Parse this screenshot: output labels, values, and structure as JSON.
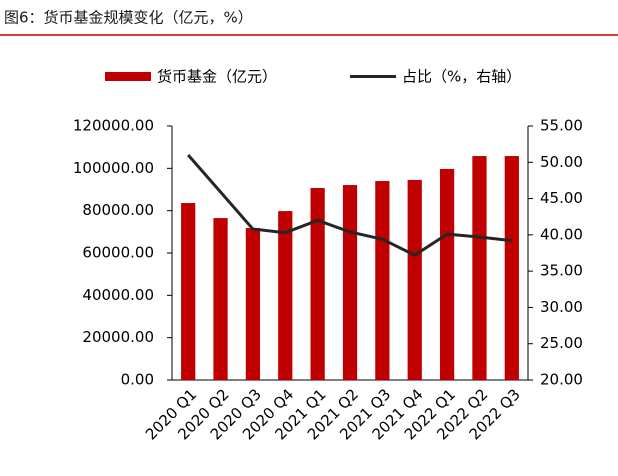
{
  "chart_data": {
    "type": "bar",
    "title": "图6：货币基金规模变化（亿元，%）",
    "categories": [
      "2020 Q1",
      "2020 Q2",
      "2020 Q3",
      "2020 Q4",
      "2021 Q1",
      "2021 Q2",
      "2021 Q3",
      "2021 Q4",
      "2022 Q1",
      "2022 Q2",
      "2022 Q3"
    ],
    "series": [
      {
        "name": "货币基金（亿元）",
        "type": "bar",
        "color": "#c00000",
        "values": [
          83600,
          76500,
          71800,
          79800,
          90700,
          92100,
          94000,
          94500,
          99700,
          105800,
          105800
        ]
      },
      {
        "name": "占比（%，右轴）",
        "type": "line",
        "axis": "y2",
        "color": "#262626",
        "values": [
          51.0,
          45.9,
          40.8,
          40.3,
          42.0,
          40.4,
          39.4,
          37.2,
          40.1,
          39.7,
          39.2
        ]
      }
    ],
    "ylim": [
      0,
      120000
    ],
    "yticks": [
      {
        "value": 0,
        "label": "0.00"
      },
      {
        "value": 20000,
        "label": "20000.00"
      },
      {
        "value": 40000,
        "label": "40000.00"
      },
      {
        "value": 60000,
        "label": "60000.00"
      },
      {
        "value": 80000,
        "label": "80000.00"
      },
      {
        "value": 100000,
        "label": "100000.00"
      },
      {
        "value": 120000,
        "label": "120000.00"
      }
    ],
    "y2lim": [
      20,
      55
    ],
    "y2ticks": [
      {
        "value": 20,
        "label": "20.00"
      },
      {
        "value": 25,
        "label": "25.00"
      },
      {
        "value": 30,
        "label": "30.00"
      },
      {
        "value": 35,
        "label": "35.00"
      },
      {
        "value": 40,
        "label": "40.00"
      },
      {
        "value": 45,
        "label": "45.00"
      },
      {
        "value": 50,
        "label": "50.00"
      },
      {
        "value": 55,
        "label": "55.00"
      }
    ],
    "legend": "top"
  }
}
